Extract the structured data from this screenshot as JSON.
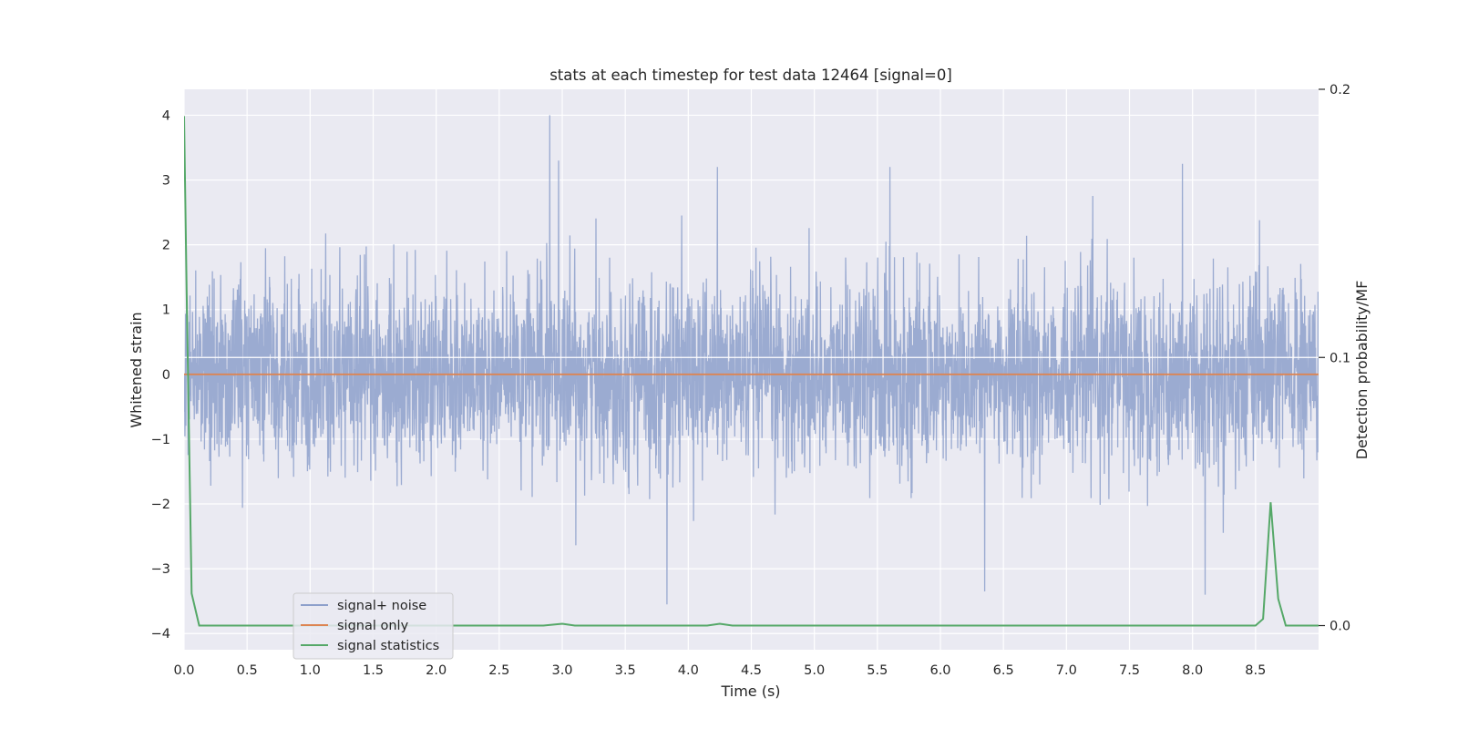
{
  "chart_data": {
    "type": "line",
    "title": "stats at each timestep for test data 12464 [signal=0]",
    "xlabel": "Time (s)",
    "ylabel": "Whitened strain",
    "y2label": "Detection probability/MF",
    "xlim": [
      0,
      9.0
    ],
    "ylim": [
      -4.25,
      4.4
    ],
    "y2lim": [
      -0.009,
      0.2
    ],
    "xticks": [
      "0.0",
      "0.5",
      "1.0",
      "1.5",
      "2.0",
      "2.5",
      "3.0",
      "3.5",
      "4.0",
      "4.5",
      "5.0",
      "5.5",
      "6.0",
      "6.5",
      "7.0",
      "7.5",
      "8.0",
      "8.5"
    ],
    "yticks": [
      "4",
      "3",
      "2",
      "1",
      "0",
      "−1",
      "−2",
      "−3",
      "−4"
    ],
    "y2ticks": [
      "0.2",
      "0.1",
      "0.0"
    ],
    "grid": true,
    "legend_position": "lower-left",
    "series": [
      {
        "name": "signal+ noise",
        "axis": "left",
        "color": "#8da0cb",
        "description_values": "dense noise, amplitude about ±1.5 with spikes to about 4.0 and -3.6",
        "peaks": [
          {
            "x": 2.9,
            "y": 4.0
          },
          {
            "x": 2.97,
            "y": 3.3
          },
          {
            "x": 4.23,
            "y": 3.2
          },
          {
            "x": 5.6,
            "y": 3.2
          },
          {
            "x": 7.92,
            "y": 3.25
          },
          {
            "x": 3.83,
            "y": -3.55
          },
          {
            "x": 6.35,
            "y": -3.35
          },
          {
            "x": 8.1,
            "y": -3.4
          }
        ]
      },
      {
        "name": "signal only",
        "axis": "left",
        "color": "#dd8452",
        "x": [
          0.0,
          9.0
        ],
        "values": [
          0.0,
          0.0
        ]
      },
      {
        "name": "signal statistics",
        "axis": "right",
        "color": "#55a868",
        "x": [
          0.0,
          0.02,
          0.06,
          0.12,
          0.2,
          2.85,
          3.0,
          3.1,
          4.15,
          4.25,
          4.35,
          8.5,
          8.56,
          8.62,
          8.68,
          8.74,
          9.0
        ],
        "values": [
          0.19,
          0.125,
          0.012,
          0.0,
          0.0,
          0.0,
          0.0007,
          0.0,
          0.0,
          0.0007,
          0.0,
          0.0,
          0.0025,
          0.046,
          0.01,
          0.0,
          0.0
        ]
      }
    ]
  }
}
